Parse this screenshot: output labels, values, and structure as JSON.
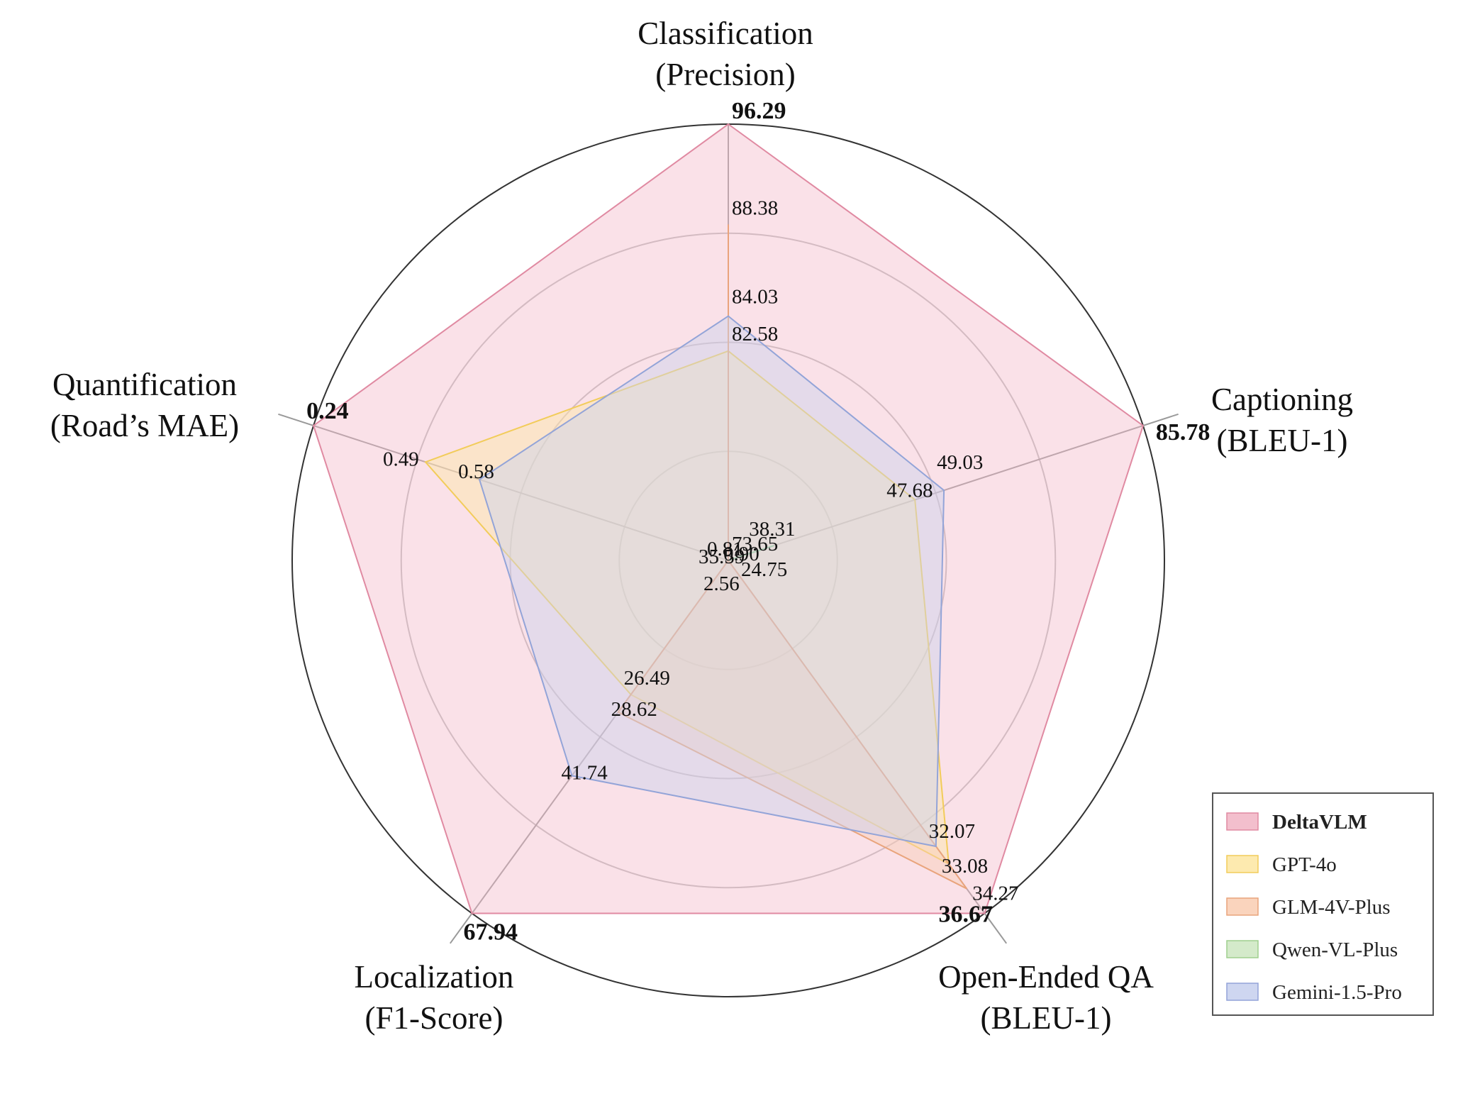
{
  "chart_data": {
    "type": "radar",
    "axes": [
      {
        "title": [
          "Classification",
          "(Precision)"
        ]
      },
      {
        "title": [
          "Captioning",
          "(BLEU-1)"
        ]
      },
      {
        "title": [
          "Open-Ended QA",
          "(BLEU-1)"
        ]
      },
      {
        "title": [
          "Localization",
          "(F1-Score)"
        ]
      },
      {
        "title": [
          "Quantification",
          "(Road’s MAE)"
        ]
      }
    ],
    "series": [
      {
        "name": "DeltaVLM",
        "color": "#f2b8c8",
        "stroke": "#e08aa2",
        "bold": true,
        "values": [
          96.29,
          85.78,
          36.67,
          67.94,
          0.24
        ],
        "labels": [
          "96.29",
          "85.78",
          "36.67",
          "67.94",
          "0.24"
        ]
      },
      {
        "name": "GPT-4o",
        "color": "#fde8a6",
        "stroke": "#f2cc5a",
        "bold": false,
        "values": [
          82.58,
          47.68,
          33.08,
          26.49,
          0.49
        ],
        "labels": [
          "82.58",
          "47.68",
          "33.08",
          "26.49",
          "0.49"
        ]
      },
      {
        "name": "GLM-4V-Plus",
        "color": "#f9cfb6",
        "stroke": "#e9a47c",
        "bold": false,
        "values": [
          88.38,
          35.59,
          34.27,
          28.62,
          0.81
        ],
        "labels": [
          "88.38",
          "35.59",
          "34.27",
          "28.62",
          "0.81"
        ]
      },
      {
        "name": "Qwen-VL-Plus",
        "color": "#cfe8c4",
        "stroke": "#9fcf8e",
        "bold": false,
        "values": [
          73.65,
          38.31,
          24.75,
          2.56,
          0.9
        ],
        "labels": [
          "73.65",
          "38.31",
          "24.75",
          "2.56",
          "0.90"
        ]
      },
      {
        "name": "Gemini-1.5-Pro",
        "color": "#c9d2ee",
        "stroke": "#93a4d8",
        "bold": false,
        "values": [
          84.03,
          49.03,
          32.07,
          41.74,
          0.58
        ],
        "labels": [
          "84.03",
          "49.03",
          "32.07",
          "41.74",
          "0.58"
        ]
      }
    ],
    "normalized_radius": [
      [
        1.0,
        1.0,
        1.0,
        1.0,
        1.0
      ],
      [
        0.48,
        0.45,
        0.86,
        0.38,
        0.73
      ],
      [
        0.77,
        0.0,
        0.93,
        0.43,
        0.0
      ],
      [
        0.0,
        0.11,
        0.0,
        0.0,
        0.0
      ],
      [
        0.56,
        0.52,
        0.81,
        0.61,
        0.6
      ]
    ],
    "grid": true,
    "legend_position": "bottom-right"
  }
}
